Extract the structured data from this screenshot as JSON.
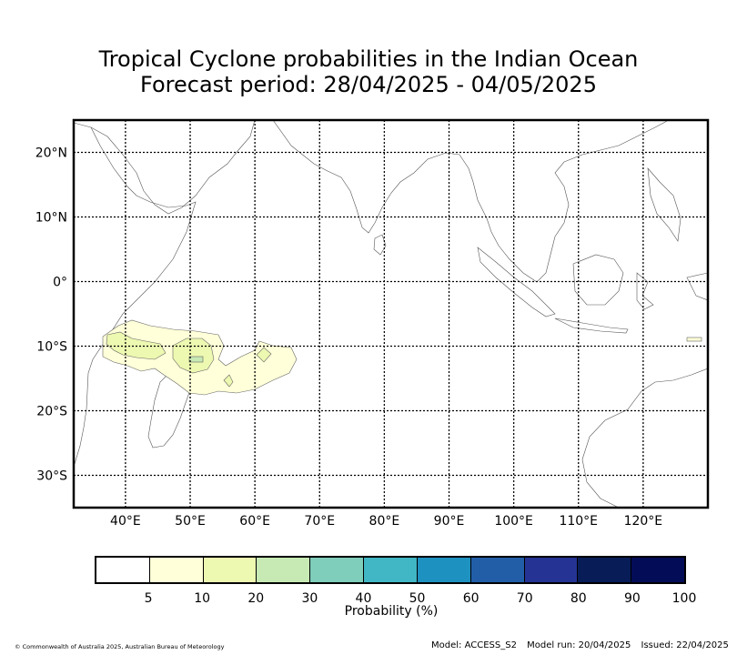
{
  "title": {
    "line1": "Tropical Cyclone probabilities in the Indian Ocean",
    "line2": "Forecast period: 28/04/2025 - 04/05/2025"
  },
  "map": {
    "lat_labels": [
      "20°N",
      "10°N",
      "0°",
      "10°S",
      "20°S",
      "30°S"
    ],
    "lon_labels": [
      "40°E",
      "50°E",
      "60°E",
      "70°E",
      "80°E",
      "90°E",
      "100°E",
      "110°E",
      "120°E"
    ],
    "lat_range": [
      -35,
      25
    ],
    "lon_range": [
      32,
      130
    ],
    "grid": "dotted",
    "probability_regions": [
      {
        "region": "Southwest Indian Ocean near Madagascar",
        "category": "5-10"
      },
      {
        "region": "Southwest Indian Ocean near Madagascar",
        "category": "10-20"
      },
      {
        "region": "Southwest Indian Ocean near Madagascar",
        "category": "20-30"
      }
    ]
  },
  "legend": {
    "colors": [
      "#ffffff",
      "#ffffd9",
      "#edf8b1",
      "#c7e9b4",
      "#7fcdbb",
      "#41b6c4",
      "#1d91c0",
      "#225ea8",
      "#253494",
      "#081d58",
      "#030c56"
    ],
    "ticks": [
      "5",
      "10",
      "20",
      "30",
      "40",
      "50",
      "60",
      "70",
      "80",
      "90",
      "100"
    ],
    "title": "Probability (%)"
  },
  "footer": {
    "copyright": "© Commonwealth of Australia 2025, Australian Bureau of Meteorology",
    "model": "Model: ACCESS_S2",
    "model_run": "Model run: 20/04/2025",
    "issued": "Issued: 22/04/2025"
  }
}
